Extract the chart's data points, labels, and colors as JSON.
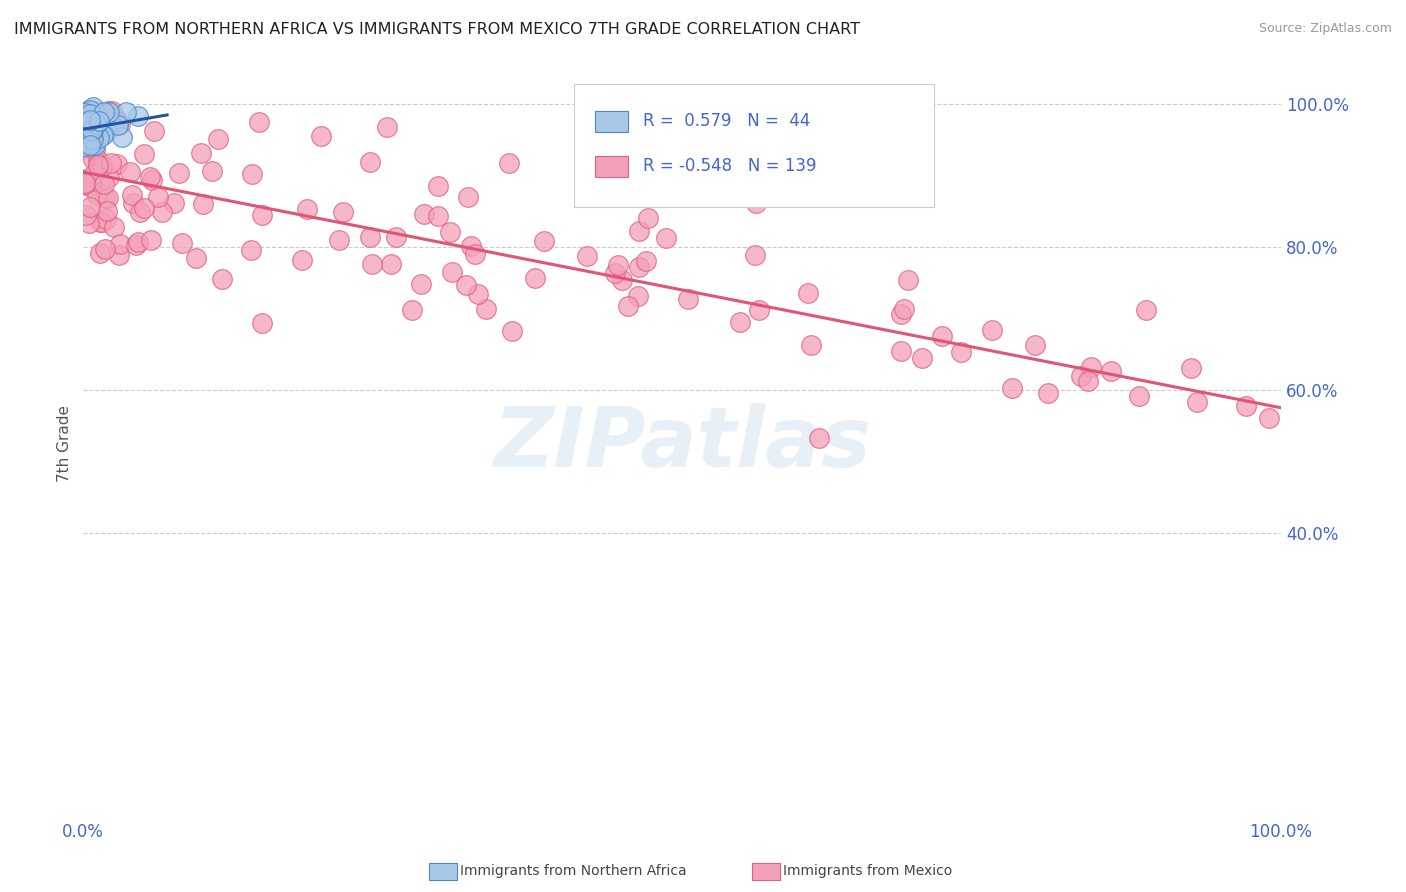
{
  "title": "IMMIGRANTS FROM NORTHERN AFRICA VS IMMIGRANTS FROM MEXICO 7TH GRADE CORRELATION CHART",
  "source": "Source: ZipAtlas.com",
  "ylabel": "7th Grade",
  "blue_R": 0.579,
  "blue_N": 44,
  "pink_R": -0.548,
  "pink_N": 139,
  "legend_label_blue": "Immigrants from Northern Africa",
  "legend_label_pink": "Immigrants from Mexico",
  "blue_color": "#a8c8e8",
  "pink_color": "#f4a0b8",
  "blue_edge_color": "#4488cc",
  "pink_edge_color": "#e06080",
  "blue_line_color": "#2255aa",
  "pink_line_color": "#e05575",
  "title_color": "#222222",
  "axis_label_color": "#4466cc",
  "ylabel_color": "#555555",
  "watermark": "ZIPatlas",
  "grid_color": "#cccccc",
  "xlim": [
    0.0,
    1.0
  ],
  "ylim": [
    0.0,
    1.05
  ],
  "yticks": [
    0.4,
    0.6,
    0.8,
    1.0
  ],
  "ytick_labels": [
    "40.0%",
    "60.0%",
    "80.0%",
    "100.0%"
  ],
  "xtick_labels_show": [
    "0.0%",
    "100.0%"
  ],
  "blue_line_x": [
    0.0,
    0.07
  ],
  "blue_line_y": [
    0.965,
    0.985
  ],
  "pink_line_x": [
    0.0,
    1.0
  ],
  "pink_line_y": [
    0.905,
    0.575
  ]
}
